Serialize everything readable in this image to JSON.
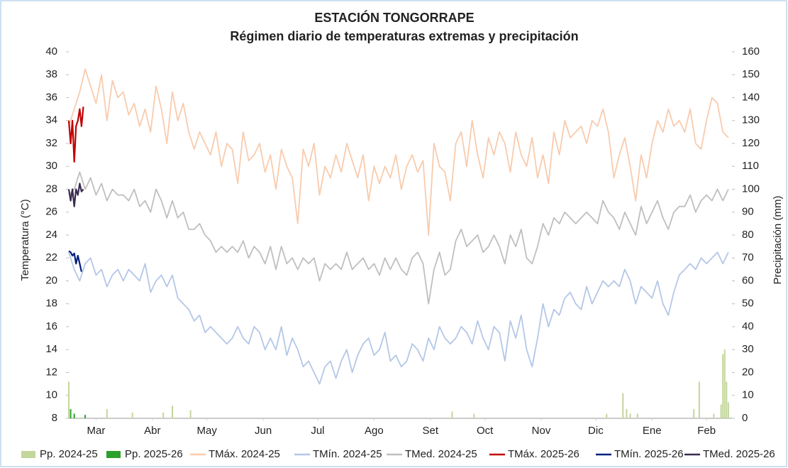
{
  "chart_data": {
    "type": "line",
    "title": "ESTACIÓN TONGORRAPE",
    "subtitle": "Régimen diario de temperaturas extremas y precipitación",
    "y_label": "Temperatura (°C)",
    "y2_label": "Precipitación (mm)",
    "xlim": [
      0,
      365
    ],
    "xticks": [
      {
        "value": 15,
        "label": "Mar"
      },
      {
        "value": 46,
        "label": "Abr"
      },
      {
        "value": 76,
        "label": "May"
      },
      {
        "value": 107,
        "label": "Jun"
      },
      {
        "value": 137,
        "label": "Jul"
      },
      {
        "value": 168,
        "label": "Ago"
      },
      {
        "value": 199,
        "label": "Set"
      },
      {
        "value": 229,
        "label": "Oct"
      },
      {
        "value": 260,
        "label": "Nov"
      },
      {
        "value": 290,
        "label": "Dic"
      },
      {
        "value": 321,
        "label": "Ene"
      },
      {
        "value": 351,
        "label": "Feb"
      }
    ],
    "ylim": [
      8,
      40
    ],
    "yticks": [
      8,
      10,
      12,
      14,
      16,
      18,
      20,
      22,
      24,
      26,
      28,
      30,
      32,
      34,
      36,
      38,
      40
    ],
    "y2lim": [
      0,
      160
    ],
    "y2ticks": [
      0,
      10,
      20,
      30,
      40,
      50,
      60,
      70,
      80,
      90,
      100,
      110,
      120,
      130,
      140,
      150,
      160
    ],
    "grid": false,
    "legend": "bottom",
    "x": [
      0,
      3,
      6,
      9,
      12,
      15,
      18,
      21,
      24,
      27,
      30,
      33,
      36,
      39,
      42,
      45,
      48,
      51,
      54,
      57,
      60,
      63,
      66,
      69,
      72,
      75,
      78,
      81,
      84,
      87,
      90,
      93,
      96,
      99,
      102,
      105,
      108,
      111,
      114,
      117,
      120,
      123,
      126,
      129,
      132,
      135,
      138,
      141,
      144,
      147,
      150,
      153,
      156,
      159,
      162,
      165,
      168,
      171,
      174,
      177,
      180,
      183,
      186,
      189,
      192,
      195,
      198,
      201,
      204,
      207,
      210,
      213,
      216,
      219,
      222,
      225,
      228,
      231,
      234,
      237,
      240,
      243,
      246,
      249,
      252,
      255,
      258,
      261,
      264,
      267,
      270,
      273,
      276,
      279,
      282,
      285,
      288,
      291,
      294,
      297,
      300,
      303,
      306,
      309,
      312,
      315,
      318,
      321,
      324,
      327,
      330,
      333,
      336,
      339,
      342,
      345,
      348,
      351,
      354,
      357,
      360,
      363
    ],
    "series": [
      {
        "name": "Pp. 2024-25",
        "type": "bar",
        "axis": "y2",
        "color": "#c3d69b",
        "x": [
          0,
          21,
          35,
          52,
          57,
          67,
          211,
          223,
          296,
          305,
          307,
          309,
          313,
          344,
          347,
          355,
          359,
          360,
          361,
          362,
          363
        ],
        "values": [
          16,
          4,
          2.5,
          2.5,
          5.5,
          3.5,
          3,
          2,
          2,
          11,
          4,
          2,
          2,
          4,
          16,
          2,
          6,
          28,
          30,
          16,
          7
        ]
      },
      {
        "name": "Pp. 2025-26",
        "type": "bar",
        "axis": "y2",
        "color": "#2ca02c",
        "x": [
          1,
          3,
          9
        ],
        "values": [
          4,
          2,
          1.5
        ]
      },
      {
        "name": "TMáx. 2024-25",
        "type": "line",
        "color": "#f8cbad",
        "values": [
          33.5,
          35,
          36.5,
          38.5,
          37,
          35.5,
          38,
          34,
          37.5,
          36,
          36.5,
          34.5,
          35.5,
          33.5,
          35,
          33,
          37,
          35,
          32,
          36.5,
          34,
          35.5,
          33,
          31.5,
          33,
          32,
          31,
          33,
          30,
          32,
          31.5,
          28.5,
          33,
          30.5,
          31,
          32,
          29.5,
          31,
          28,
          31.5,
          30,
          29,
          25,
          31.5,
          30,
          32,
          27.5,
          30,
          29,
          31,
          29.5,
          32,
          30.5,
          29,
          31,
          27,
          30,
          28.5,
          30,
          29,
          31,
          28,
          30,
          31,
          29.5,
          30.5,
          24,
          32,
          30,
          29.5,
          27,
          32,
          33,
          30,
          34,
          31,
          29,
          32.5,
          31,
          33,
          32,
          29.5,
          33,
          31,
          30,
          32.5,
          29,
          31,
          28.5,
          33,
          31,
          34,
          32.5,
          33,
          33.5,
          32,
          34,
          33.5,
          35,
          33,
          29,
          31,
          32.5,
          30,
          27,
          31,
          29,
          32,
          34,
          33,
          35,
          33.5,
          34,
          33,
          35,
          32,
          31.5,
          34,
          36,
          35.5,
          33,
          32.5
        ]
      },
      {
        "name": "TMín. 2024-25",
        "type": "line",
        "color": "#b4c7e7",
        "values": [
          22.5,
          21,
          20,
          21.5,
          22,
          20.5,
          21,
          19.5,
          20.5,
          21,
          20,
          21,
          20.5,
          20,
          21.5,
          19,
          20,
          20.5,
          19.5,
          20.5,
          18.5,
          18,
          17.5,
          16.5,
          17,
          15.5,
          16,
          15.5,
          15,
          14.5,
          15,
          16,
          15,
          14.5,
          16,
          15.5,
          14,
          15,
          14,
          16,
          13.5,
          15,
          14,
          12.5,
          13,
          12,
          11,
          12.5,
          13,
          11.5,
          13,
          14,
          12,
          13.5,
          14.5,
          15,
          13.5,
          14,
          15.5,
          13,
          13.5,
          12.5,
          13,
          14.5,
          14,
          13,
          15,
          14,
          16,
          15,
          14.5,
          15,
          16,
          15.5,
          14.5,
          16.5,
          15,
          14,
          16,
          15.5,
          13,
          16.5,
          15,
          17,
          14,
          12.5,
          15,
          18,
          16,
          17.5,
          17,
          18.5,
          19,
          18,
          17.5,
          19.5,
          18,
          19,
          20,
          19.5,
          20,
          19.5,
          21,
          20,
          18,
          19.5,
          19,
          18.5,
          20,
          18,
          17,
          19,
          20.5,
          21,
          21.5,
          21,
          22,
          21.5,
          22,
          22.5,
          21.5,
          22.5
        ]
      },
      {
        "name": "TMed. 2024-25",
        "type": "line",
        "color": "#bfbfbf",
        "values": [
          27.5,
          28,
          29.5,
          28,
          29,
          27.5,
          28.5,
          27,
          28,
          27.5,
          27.5,
          27,
          28,
          26.5,
          27,
          26,
          28,
          27,
          25.5,
          27,
          25.5,
          26,
          24.5,
          24.5,
          25,
          24,
          23.5,
          22.5,
          23,
          22.5,
          23,
          22.5,
          23.5,
          22,
          23,
          22.5,
          21.5,
          23,
          21,
          23,
          21.5,
          22,
          21,
          22,
          21.5,
          22,
          20,
          21.5,
          21,
          21.5,
          21,
          22.5,
          21,
          21.5,
          22,
          21,
          21.5,
          20.5,
          22,
          21,
          22,
          21,
          20.5,
          22,
          22.5,
          21.5,
          18,
          21,
          22.5,
          20.5,
          21,
          23.5,
          24.5,
          23,
          23.5,
          24,
          22.5,
          23,
          24,
          23,
          21.5,
          24,
          23,
          24.5,
          22,
          21.5,
          23,
          25,
          24,
          25.5,
          25,
          26,
          25.5,
          25,
          25.5,
          26,
          25.5,
          25,
          27,
          26,
          25.5,
          24.5,
          26,
          25,
          24,
          26.5,
          25,
          26,
          27,
          25.5,
          24.5,
          26,
          26.5,
          26.5,
          27.5,
          26,
          27,
          27.5,
          27,
          28,
          27,
          28
        ]
      },
      {
        "name": "TMáx. 2025-26",
        "type": "line",
        "color": "#c00000",
        "x": [
          0,
          1,
          2,
          3,
          4,
          5,
          6,
          7,
          8
        ],
        "values": [
          34,
          32,
          34,
          30.4,
          33.5,
          34,
          35,
          33.5,
          35.2
        ]
      },
      {
        "name": "TMín. 2025-26",
        "type": "line",
        "color": "#002080",
        "x": [
          0,
          1,
          2,
          3,
          4,
          5,
          6,
          7
        ],
        "values": [
          22.6,
          22.5,
          22.2,
          22.4,
          21.5,
          22.2,
          21.5,
          20.8
        ]
      },
      {
        "name": "TMed. 2025-26",
        "type": "line",
        "color": "#3a2c50",
        "x": [
          0,
          1,
          2,
          3,
          4,
          5,
          6,
          7,
          8
        ],
        "values": [
          28,
          27,
          28,
          26.5,
          28,
          27.5,
          28.5,
          27.8,
          28
        ]
      }
    ]
  }
}
